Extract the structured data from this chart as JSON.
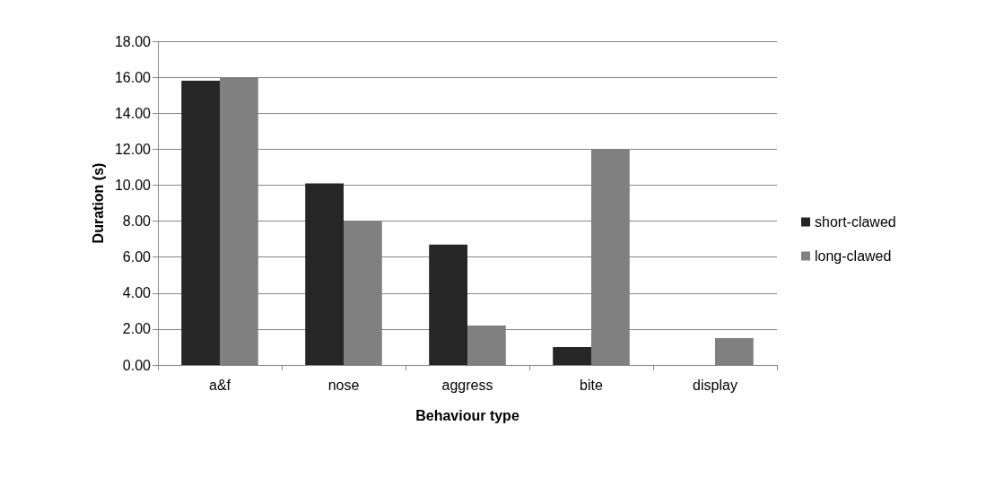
{
  "chart_data": {
    "type": "bar",
    "xlabel": "Behaviour type",
    "ylabel": "Duration (s)",
    "categories": [
      "a&f",
      "nose",
      "aggress",
      "bite",
      "display"
    ],
    "series": [
      {
        "name": "short-clawed",
        "color": "#262626",
        "values": [
          15.8,
          10.1,
          6.7,
          1.0,
          0
        ]
      },
      {
        "name": "long-clawed",
        "color": "#808080",
        "values": [
          16.0,
          8.0,
          2.2,
          12.0,
          1.5
        ]
      }
    ],
    "ylim": [
      0,
      18
    ],
    "yticks": [
      {
        "value": 0,
        "label": "0.00"
      },
      {
        "value": 2,
        "label": "2.00"
      },
      {
        "value": 4,
        "label": "4.00"
      },
      {
        "value": 6,
        "label": "6.00"
      },
      {
        "value": 8,
        "label": "8.00"
      },
      {
        "value": 10,
        "label": "10.00"
      },
      {
        "value": 12,
        "label": "12.00"
      },
      {
        "value": 14,
        "label": "14.00"
      },
      {
        "value": 16,
        "label": "16.00"
      },
      {
        "value": 18,
        "label": "18.00"
      }
    ],
    "grid": "y",
    "legend": "right"
  }
}
